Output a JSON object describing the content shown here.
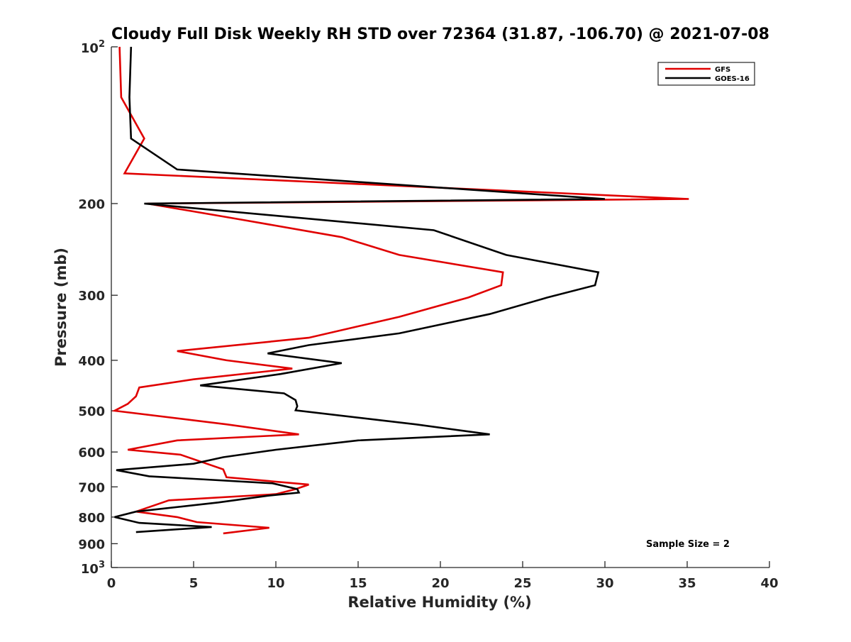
{
  "chart_data": {
    "type": "line",
    "title": "Cloudy Full Disk Weekly RH STD over 72364 (31.87, -106.70) @ 2021-07-08",
    "xlabel": "Relative Humidity (%)",
    "ylabel": "Pressure (mb)",
    "xlim": [
      0,
      40
    ],
    "ylim": [
      100,
      1000
    ],
    "yscale": "log",
    "y_reversed": true,
    "grid": false,
    "legend_position": "top-right",
    "x_ticks": [
      0,
      5,
      10,
      15,
      20,
      25,
      30,
      35,
      40
    ],
    "y_ticks": [
      {
        "value": 100,
        "base": "10",
        "exp": "2"
      },
      {
        "value": 200,
        "label": "200"
      },
      {
        "value": 300,
        "label": "300"
      },
      {
        "value": 400,
        "label": "400"
      },
      {
        "value": 500,
        "label": "500"
      },
      {
        "value": 600,
        "label": "600"
      },
      {
        "value": 700,
        "label": "700"
      },
      {
        "value": 800,
        "label": "800"
      },
      {
        "value": 900,
        "label": "900"
      },
      {
        "value": 1000,
        "base": "10",
        "exp": "3"
      }
    ],
    "annotation": "Sample Size = 2",
    "series": [
      {
        "name": "GFS",
        "color": "#e00000",
        "points": [
          [
            0.5,
            100
          ],
          [
            0.6,
            125
          ],
          [
            2.0,
            150
          ],
          [
            0.8,
            175
          ],
          [
            35.1,
            196
          ],
          [
            2.2,
            200
          ],
          [
            8.0,
            215
          ],
          [
            14.0,
            232
          ],
          [
            17.5,
            251
          ],
          [
            23.8,
            271
          ],
          [
            23.7,
            287
          ],
          [
            21.7,
            303
          ],
          [
            17.5,
            330
          ],
          [
            12.0,
            362
          ],
          [
            4.0,
            384
          ],
          [
            7.0,
            400
          ],
          [
            11.0,
            415
          ],
          [
            5.0,
            435
          ],
          [
            1.7,
            451
          ],
          [
            1.5,
            469
          ],
          [
            1.0,
            485
          ],
          [
            0.2,
            500
          ],
          [
            7.0,
            531
          ],
          [
            11.4,
            555
          ],
          [
            4.0,
            570
          ],
          [
            1.0,
            594
          ],
          [
            4.2,
            607
          ],
          [
            6.8,
            648
          ],
          [
            7.0,
            671
          ],
          [
            12.0,
            693
          ],
          [
            11.2,
            707
          ],
          [
            10.0,
            723
          ],
          [
            3.5,
            743
          ],
          [
            1.5,
            781
          ],
          [
            4.0,
            800
          ],
          [
            5.2,
            818
          ],
          [
            9.6,
            839
          ],
          [
            6.8,
            860
          ]
        ]
      },
      {
        "name": "GOES-16",
        "color": "#000000",
        "points": [
          [
            1.2,
            100
          ],
          [
            1.1,
            125
          ],
          [
            1.2,
            150
          ],
          [
            4.0,
            172
          ],
          [
            30.0,
            196
          ],
          [
            2.0,
            200
          ],
          [
            19.6,
            225
          ],
          [
            24.0,
            251
          ],
          [
            29.6,
            271
          ],
          [
            29.4,
            287
          ],
          [
            26.5,
            303
          ],
          [
            23.0,
            326
          ],
          [
            17.5,
            355
          ],
          [
            12.0,
            374
          ],
          [
            9.5,
            388
          ],
          [
            14.0,
            405
          ],
          [
            10.3,
            425
          ],
          [
            5.4,
            447
          ],
          [
            10.5,
            463
          ],
          [
            11.2,
            477
          ],
          [
            11.3,
            490
          ],
          [
            11.2,
            499
          ],
          [
            18.5,
            531
          ],
          [
            23.0,
            555
          ],
          [
            15.0,
            570
          ],
          [
            10.0,
            594
          ],
          [
            6.8,
            614
          ],
          [
            5.0,
            632
          ],
          [
            0.3,
            650
          ],
          [
            2.3,
            668
          ],
          [
            9.8,
            689
          ],
          [
            11.3,
            707
          ],
          [
            11.4,
            718
          ],
          [
            9.5,
            728
          ],
          [
            6.5,
            750
          ],
          [
            1.5,
            781
          ],
          [
            0.2,
            800
          ],
          [
            1.7,
            821
          ],
          [
            6.1,
            836
          ],
          [
            1.5,
            855
          ]
        ]
      }
    ]
  }
}
